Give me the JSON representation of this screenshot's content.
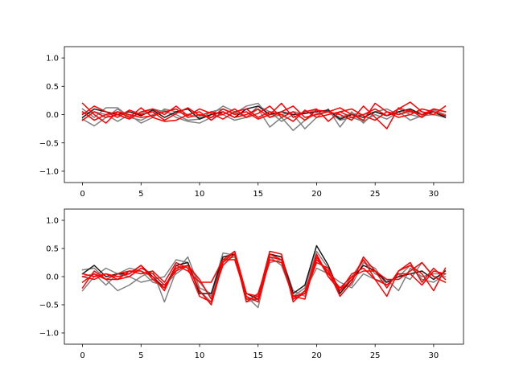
{
  "chart_data": [
    {
      "type": "line",
      "xlim": [
        -1.55,
        32.55
      ],
      "ylim": [
        -1.2,
        1.2
      ],
      "xticks": [
        0,
        5,
        10,
        15,
        20,
        25,
        30
      ],
      "xtick_labels": [
        "0",
        "5",
        "10",
        "15",
        "20",
        "25",
        "30"
      ],
      "yticks": [
        -1.0,
        -0.5,
        0.0,
        0.5,
        1.0
      ],
      "ytick_labels": [
        "−1.0",
        "−0.5",
        "0.0",
        "0.5",
        "1.0"
      ],
      "grid": false,
      "x": [
        0,
        1,
        2,
        3,
        4,
        5,
        6,
        7,
        8,
        9,
        10,
        11,
        12,
        13,
        14,
        15,
        16,
        17,
        18,
        19,
        20,
        21,
        22,
        23,
        24,
        25,
        26,
        27,
        28,
        29,
        30,
        31
      ],
      "series": [
        {
          "color": "#808080",
          "values": [
            0.1,
            -0.05,
            0.12,
            0.12,
            -0.04,
            0.02,
            0.1,
            0.05,
            0.0,
            -0.1,
            -0.08,
            0.05,
            0.1,
            0.02,
            0.15,
            0.2,
            -0.05,
            0.0,
            0.05,
            0.02,
            0.08,
            0.05,
            -0.05,
            0.02,
            0.0,
            0.05,
            0.1,
            0.0,
            0.05,
            0.05,
            0.0,
            -0.02
          ]
        },
        {
          "color": "#808080",
          "values": [
            -0.08,
            -0.2,
            -0.05,
            0.1,
            -0.05,
            -0.1,
            0.0,
            0.08,
            -0.05,
            -0.12,
            -0.15,
            -0.05,
            0.0,
            -0.1,
            -0.05,
            0.1,
            -0.22,
            -0.05,
            -0.28,
            -0.1,
            0.02,
            0.05,
            -0.1,
            -0.05,
            -0.12,
            0.0,
            -0.08,
            0.05,
            -0.1,
            -0.02,
            0.0,
            -0.05
          ]
        },
        {
          "color": "#808080",
          "values": [
            0.02,
            0.05,
            0.0,
            -0.12,
            0.0,
            -0.15,
            -0.05,
            0.1,
            0.05,
            0.0,
            -0.05,
            0.0,
            0.15,
            0.05,
            -0.05,
            0.15,
            0.05,
            -0.12,
            0.0,
            -0.25,
            -0.05,
            0.1,
            -0.22,
            0.05,
            -0.15,
            0.05,
            -0.02,
            0.1,
            0.0,
            -0.05,
            0.08,
            0.0
          ]
        },
        {
          "color": "#1a1a1a",
          "values": [
            -0.05,
            0.1,
            0.05,
            0.0,
            0.05,
            -0.02,
            0.08,
            -0.05,
            0.05,
            0.1,
            -0.08,
            0.0,
            0.05,
            -0.05,
            0.1,
            0.15,
            0.0,
            0.05,
            0.0,
            0.02,
            0.05,
            0.08,
            -0.08,
            0.0,
            -0.05,
            0.05,
            -0.02,
            0.05,
            0.1,
            0.0,
            0.05,
            -0.05
          ]
        },
        {
          "color": "#ff0000",
          "values": [
            0.2,
            0.0,
            -0.15,
            0.05,
            0.0,
            -0.05,
            -0.02,
            0.05,
            0.1,
            -0.05,
            0.0,
            -0.05,
            0.1,
            0.0,
            0.05,
            -0.08,
            0.0,
            0.2,
            -0.05,
            0.05,
            0.1,
            -0.12,
            0.05,
            -0.05,
            0.0,
            0.1,
            -0.02,
            0.1,
            0.22,
            0.05,
            0.0,
            0.15
          ]
        },
        {
          "color": "#ff0000",
          "values": [
            0.0,
            0.15,
            0.05,
            -0.05,
            0.08,
            0.0,
            0.05,
            -0.1,
            0.02,
            0.12,
            -0.02,
            0.05,
            0.0,
            0.1,
            -0.05,
            0.02,
            0.15,
            -0.05,
            0.05,
            -0.1,
            0.08,
            0.05,
            0.0,
            -0.1,
            0.15,
            -0.05,
            -0.25,
            0.12,
            0.05,
            0.0,
            0.1,
            0.05
          ]
        },
        {
          "color": "#ff0000",
          "values": [
            0.05,
            -0.1,
            0.0,
            0.05,
            -0.05,
            0.12,
            -0.05,
            -0.12,
            -0.1,
            0.0,
            0.05,
            -0.1,
            0.05,
            -0.05,
            0.0,
            0.1,
            -0.05,
            0.05,
            0.15,
            -0.05,
            0.0,
            0.05,
            0.12,
            0.0,
            -0.1,
            0.2,
            0.05,
            -0.05,
            0.0,
            0.1,
            0.05,
            -0.02
          ]
        },
        {
          "color": "#ff0000",
          "values": [
            -0.1,
            0.05,
            -0.05,
            0.0,
            -0.08,
            0.05,
            0.1,
            0.0,
            0.15,
            -0.02,
            0.1,
            0.02,
            -0.08,
            0.05,
            0.1,
            -0.05,
            0.05,
            0.0,
            -0.12,
            0.08,
            -0.05,
            0.0,
            0.05,
            0.1,
            -0.02,
            -0.1,
            0.05,
            0.0,
            0.08,
            -0.05,
            0.1,
            0.05
          ]
        }
      ]
    },
    {
      "type": "line",
      "xlim": [
        -1.55,
        32.55
      ],
      "ylim": [
        -1.2,
        1.2
      ],
      "xticks": [
        0,
        5,
        10,
        15,
        20,
        25,
        30
      ],
      "xtick_labels": [
        "0",
        "5",
        "10",
        "15",
        "20",
        "25",
        "30"
      ],
      "yticks": [
        -1.0,
        -0.5,
        0.0,
        0.5,
        1.0
      ],
      "ytick_labels": [
        "−1.0",
        "−0.5",
        "0.0",
        "0.5",
        "1.0"
      ],
      "grid": false,
      "x": [
        0,
        1,
        2,
        3,
        4,
        5,
        6,
        7,
        8,
        9,
        10,
        11,
        12,
        13,
        14,
        15,
        16,
        17,
        18,
        19,
        20,
        21,
        22,
        23,
        24,
        25,
        26,
        27,
        28,
        29,
        30,
        31
      ],
      "series": [
        {
          "color": "#808080",
          "values": [
            0.12,
            0.15,
            -0.05,
            -0.25,
            -0.15,
            0.0,
            0.1,
            -0.45,
            0.1,
            0.35,
            -0.2,
            -0.3,
            0.42,
            0.38,
            -0.35,
            -0.55,
            0.35,
            0.2,
            -0.35,
            -0.2,
            0.45,
            0.15,
            -0.3,
            0.0,
            0.3,
            0.05,
            -0.05,
            -0.25,
            0.15,
            0.0,
            0.05,
            0.05
          ]
        },
        {
          "color": "#808080",
          "values": [
            -0.25,
            0.0,
            0.15,
            0.05,
            0.0,
            -0.1,
            -0.05,
            0.0,
            0.3,
            0.25,
            -0.25,
            -0.45,
            0.25,
            0.4,
            -0.45,
            -0.4,
            0.4,
            0.35,
            -0.25,
            -0.35,
            0.35,
            0.0,
            -0.2,
            -0.15,
            0.25,
            0.15,
            -0.15,
            0.05,
            -0.05,
            0.25,
            0.0,
            0.0
          ]
        },
        {
          "color": "#808080",
          "values": [
            0.0,
            0.05,
            -0.15,
            0.05,
            0.15,
            0.1,
            -0.1,
            -0.15,
            0.05,
            0.2,
            -0.1,
            -0.35,
            0.3,
            0.35,
            -0.4,
            -0.35,
            0.25,
            0.3,
            -0.4,
            -0.25,
            0.15,
            0.05,
            -0.1,
            -0.2,
            0.05,
            -0.05,
            -0.1,
            0.0,
            0.2,
            -0.05,
            -0.1,
            0.05
          ]
        },
        {
          "color": "#1a1a1a",
          "values": [
            0.05,
            0.2,
            0.0,
            0.05,
            0.05,
            0.2,
            0.0,
            -0.2,
            0.2,
            0.25,
            -0.3,
            -0.3,
            0.35,
            0.4,
            -0.3,
            -0.4,
            0.4,
            0.35,
            -0.3,
            -0.15,
            0.55,
            0.2,
            -0.3,
            -0.05,
            0.2,
            0.1,
            -0.1,
            0.0,
            0.05,
            0.1,
            -0.05,
            0.1
          ]
        },
        {
          "color": "#ff0000",
          "values": [
            0.0,
            -0.05,
            0.05,
            0.0,
            0.05,
            0.2,
            -0.05,
            -0.2,
            0.15,
            0.2,
            -0.25,
            -0.5,
            0.25,
            0.45,
            -0.3,
            -0.35,
            0.45,
            0.4,
            -0.45,
            -0.25,
            0.3,
            0.1,
            -0.35,
            -0.1,
            0.35,
            0.1,
            -0.2,
            0.1,
            0.25,
            -0.1,
            0.15,
            -0.05
          ]
        },
        {
          "color": "#ff0000",
          "values": [
            -0.2,
            0.1,
            -0.05,
            -0.05,
            0.1,
            0.05,
            0.1,
            -0.1,
            0.25,
            0.15,
            -0.35,
            -0.45,
            0.3,
            0.45,
            -0.4,
            -0.4,
            0.4,
            0.3,
            -0.4,
            -0.3,
            0.4,
            0.0,
            -0.25,
            0.05,
            0.15,
            -0.05,
            -0.35,
            0.1,
            0.2,
            0.05,
            -0.25,
            0.15
          ]
        },
        {
          "color": "#ff0000",
          "values": [
            0.05,
            0.0,
            0.05,
            -0.05,
            0.0,
            0.15,
            0.05,
            -0.15,
            0.1,
            0.2,
            -0.05,
            -0.4,
            0.2,
            0.4,
            -0.45,
            -0.3,
            0.35,
            0.3,
            -0.35,
            -0.4,
            0.35,
            0.05,
            -0.2,
            0.0,
            0.1,
            0.1,
            -0.05,
            -0.05,
            0.1,
            0.25,
            0.0,
            -0.1
          ]
        },
        {
          "color": "#ff0000",
          "values": [
            -0.1,
            0.05,
            -0.05,
            0.05,
            0.1,
            0.1,
            0.0,
            -0.25,
            0.2,
            0.1,
            -0.1,
            -0.1,
            0.3,
            0.3,
            -0.35,
            -0.45,
            0.3,
            0.25,
            -0.35,
            -0.3,
            0.25,
            0.15,
            -0.25,
            -0.05,
            0.3,
            -0.05,
            -0.15,
            0.05,
            0.05,
            -0.15,
            0.1,
            0.05
          ]
        }
      ]
    }
  ]
}
